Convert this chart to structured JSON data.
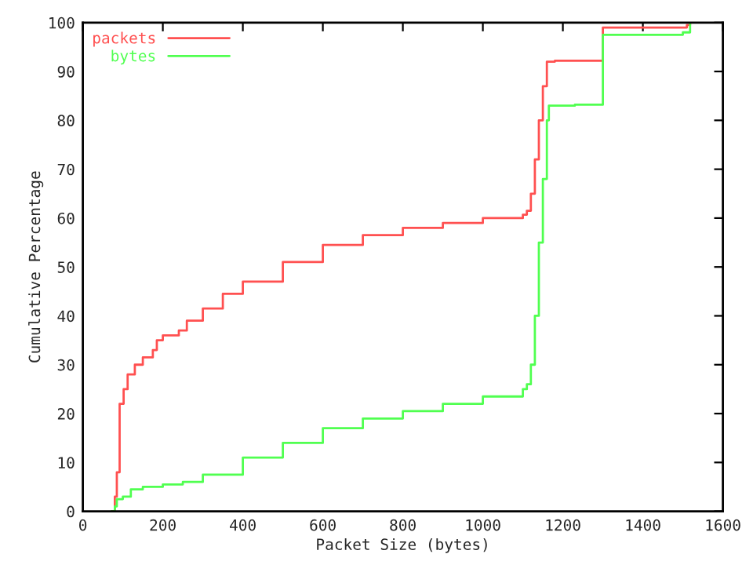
{
  "chart_data": {
    "type": "step",
    "xlabel": "Packet Size (bytes)",
    "ylabel": "Cumulative Percentage",
    "xlim": [
      0,
      1600
    ],
    "ylim": [
      0,
      100
    ],
    "xticks": [
      0,
      200,
      400,
      600,
      800,
      1000,
      1200,
      1400,
      1600
    ],
    "yticks": [
      0,
      10,
      20,
      30,
      40,
      50,
      60,
      70,
      80,
      90,
      100
    ],
    "grid": false,
    "legend": "top left",
    "series": [
      {
        "name": "packets",
        "color": "#ff5050",
        "x": [
          72,
          80,
          85,
          92,
          102,
          112,
          130,
          150,
          175,
          185,
          200,
          240,
          260,
          300,
          350,
          400,
          500,
          600,
          700,
          800,
          900,
          1000,
          1100,
          1110,
          1120,
          1130,
          1140,
          1150,
          1160,
          1180,
          1300,
          1510,
          1518
        ],
        "values": [
          0,
          3,
          8,
          22,
          25,
          28,
          30,
          31.5,
          33,
          35,
          36,
          37,
          39,
          41.5,
          44.5,
          47,
          51,
          54.5,
          56.5,
          58,
          59,
          60,
          60.7,
          61.5,
          65,
          72,
          80,
          87,
          92,
          92.2,
          99,
          99.5,
          100
        ]
      },
      {
        "name": "bytes",
        "color": "#50ff50",
        "x": [
          72,
          80,
          85,
          100,
          120,
          150,
          200,
          250,
          300,
          400,
          500,
          600,
          700,
          800,
          900,
          1000,
          1100,
          1110,
          1120,
          1130,
          1140,
          1150,
          1160,
          1165,
          1230,
          1300,
          1500,
          1518
        ],
        "values": [
          0,
          1,
          2.5,
          3,
          4.5,
          5,
          5.5,
          6,
          7.5,
          11,
          14,
          17,
          19,
          20.5,
          22,
          23.5,
          25,
          26,
          30,
          40,
          55,
          68,
          80,
          83,
          83.2,
          97.5,
          98,
          100
        ]
      }
    ]
  }
}
